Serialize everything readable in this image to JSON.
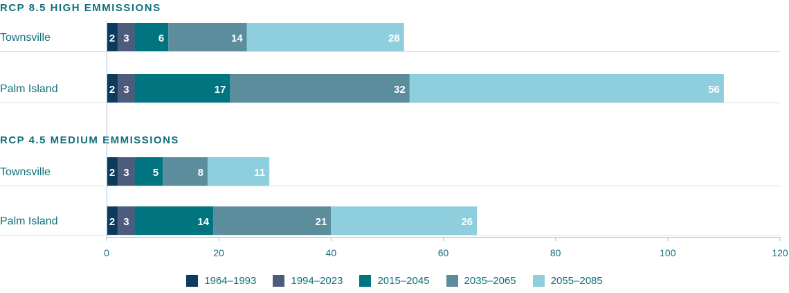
{
  "chart_data": {
    "type": "bar",
    "orientation": "horizontal",
    "stacked": true,
    "xlim": [
      0,
      120
    ],
    "xticks": [
      0,
      20,
      40,
      60,
      80,
      100,
      120
    ],
    "series_names": [
      "1964–1993",
      "1994–2023",
      "2015–2045",
      "2035–2065",
      "2055–2085"
    ],
    "colors": [
      "#0d3b5e",
      "#4d5b7c",
      "#00747f",
      "#5b8d9d",
      "#8fcfdd"
    ],
    "groups": [
      {
        "title": "RCP 8.5 HIGH EMMISSIONS",
        "rows": [
          {
            "label": "Townsville",
            "values": [
              2,
              3,
              6,
              14,
              28
            ]
          },
          {
            "label": "Palm Island",
            "values": [
              2,
              3,
              17,
              32,
              56
            ]
          }
        ]
      },
      {
        "title": "RCP 4.5 MEDIUM EMMISSIONS",
        "rows": [
          {
            "label": "Townsville",
            "values": [
              2,
              3,
              5,
              8,
              11
            ]
          },
          {
            "label": "Palm Island",
            "values": [
              2,
              3,
              14,
              21,
              26
            ]
          }
        ]
      }
    ],
    "legend_position": "bottom-center"
  }
}
